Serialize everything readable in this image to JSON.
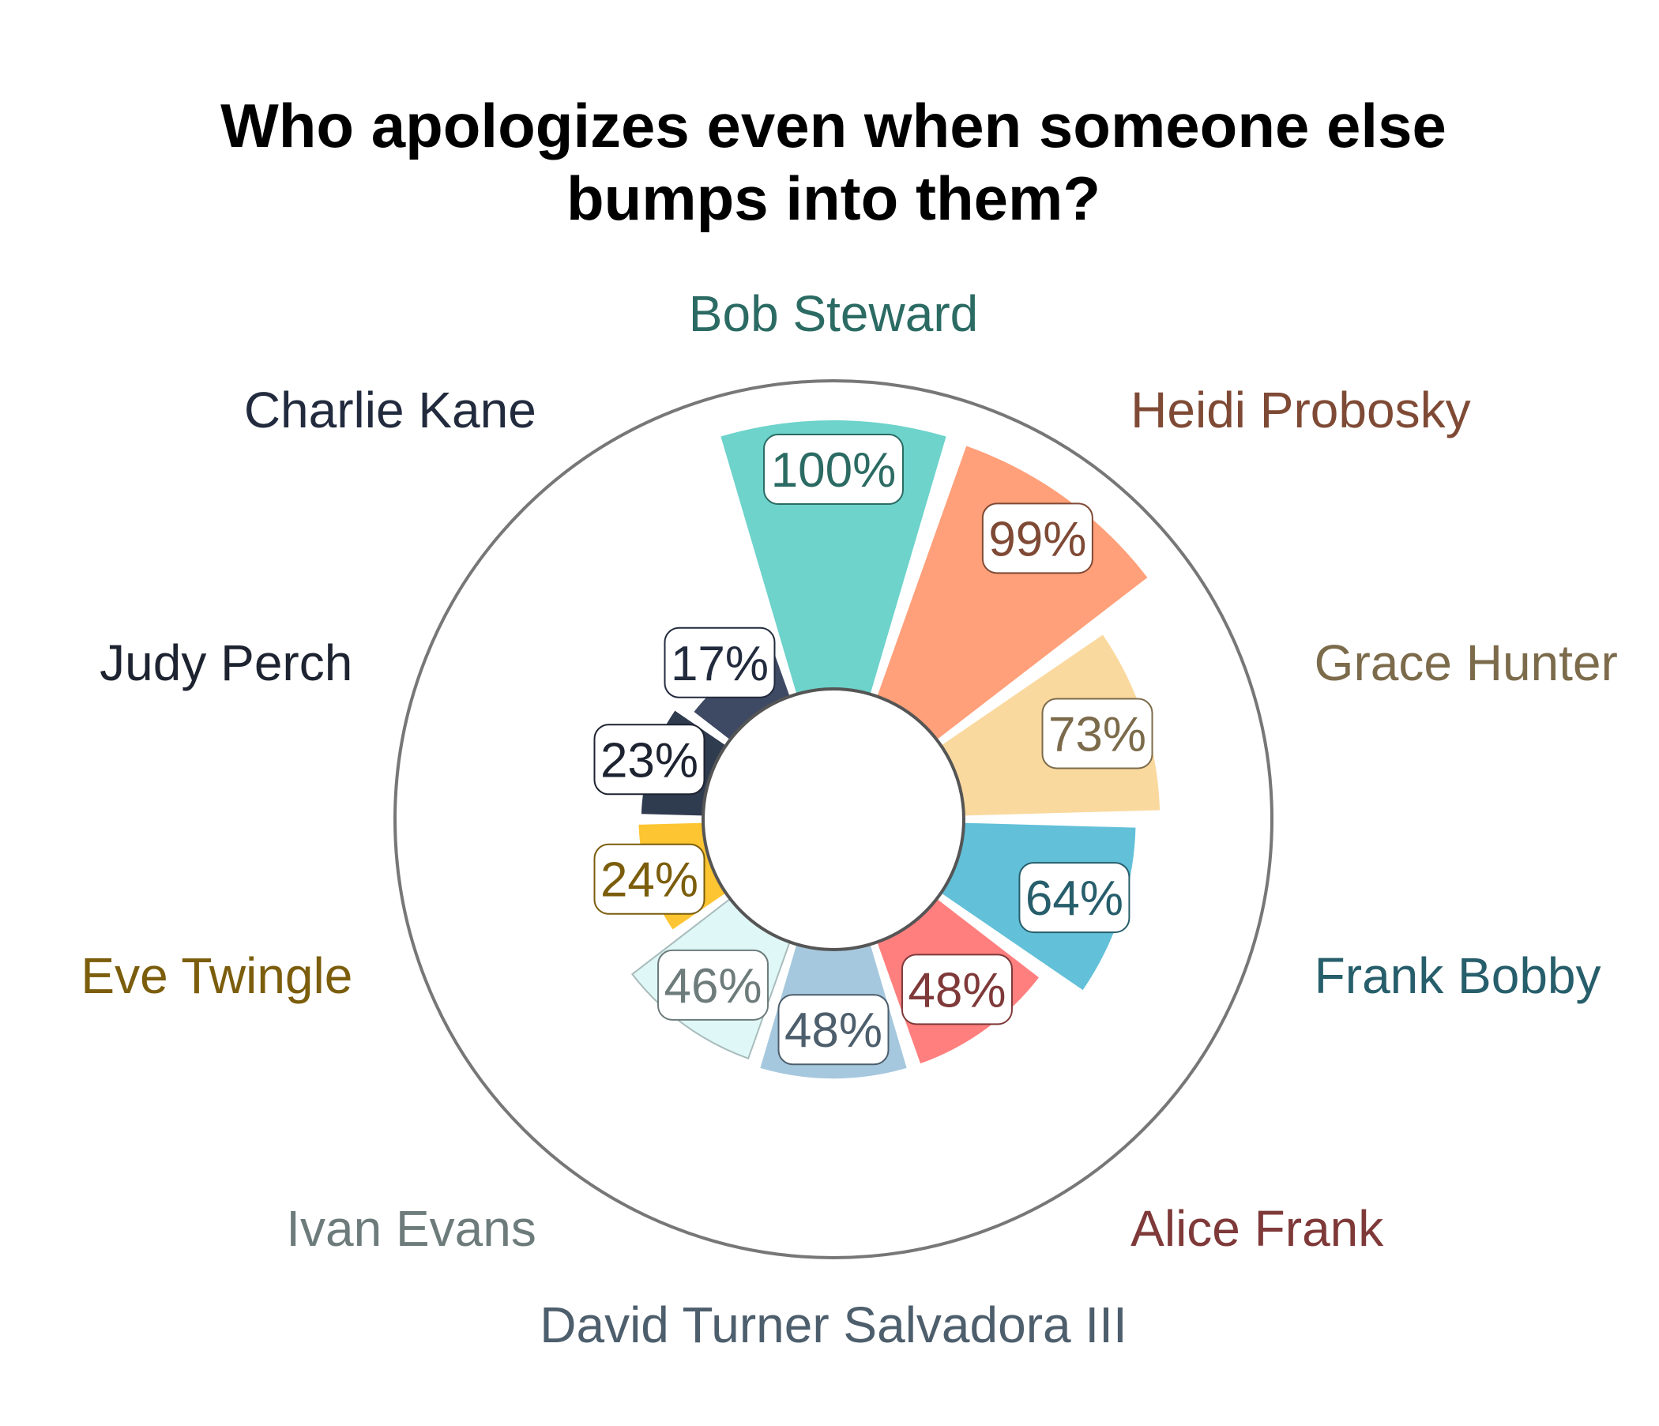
{
  "chart_data": {
    "type": "polar-bar",
    "title_lines": [
      "Who apologizes even when someone else",
      "bumps into them?"
    ],
    "value_suffix": "%",
    "rlim": [
      0,
      100
    ],
    "legend": "none",
    "grid": false,
    "slices": [
      {
        "name": "Bob Steward",
        "value": 100,
        "color": "#6dd3cb",
        "label_color": "#2b6b63"
      },
      {
        "name": "Heidi Probosky",
        "value": 99,
        "color": "#ffa07a",
        "label_color": "#7f4a35"
      },
      {
        "name": "Grace Hunter",
        "value": 73,
        "color": "#fad99f",
        "label_color": "#7c6b4b"
      },
      {
        "name": "Frank Bobby",
        "value": 64,
        "color": "#62c0d8",
        "label_color": "#275e6b"
      },
      {
        "name": "Alice Frank",
        "value": 48,
        "color": "#ff7f7f",
        "label_color": "#7f3939"
      },
      {
        "name": "David Turner Salvadora III",
        "value": 48,
        "color": "#a6c8de",
        "label_color": "#4d5e6c"
      },
      {
        "name": "Ivan Evans",
        "value": 46,
        "color": "#e0f7f7",
        "label_color": "#6d7b7b"
      },
      {
        "name": "Eve Twingle",
        "value": 24,
        "color": "#fcc531",
        "label_color": "#7b5d0c"
      },
      {
        "name": "Judy Perch",
        "value": 23,
        "color": "#2f3b4f",
        "label_color": "#1d2330"
      },
      {
        "name": "Charlie Kane",
        "value": 17,
        "color": "#3e4a63",
        "label_color": "#222b3e"
      }
    ]
  }
}
